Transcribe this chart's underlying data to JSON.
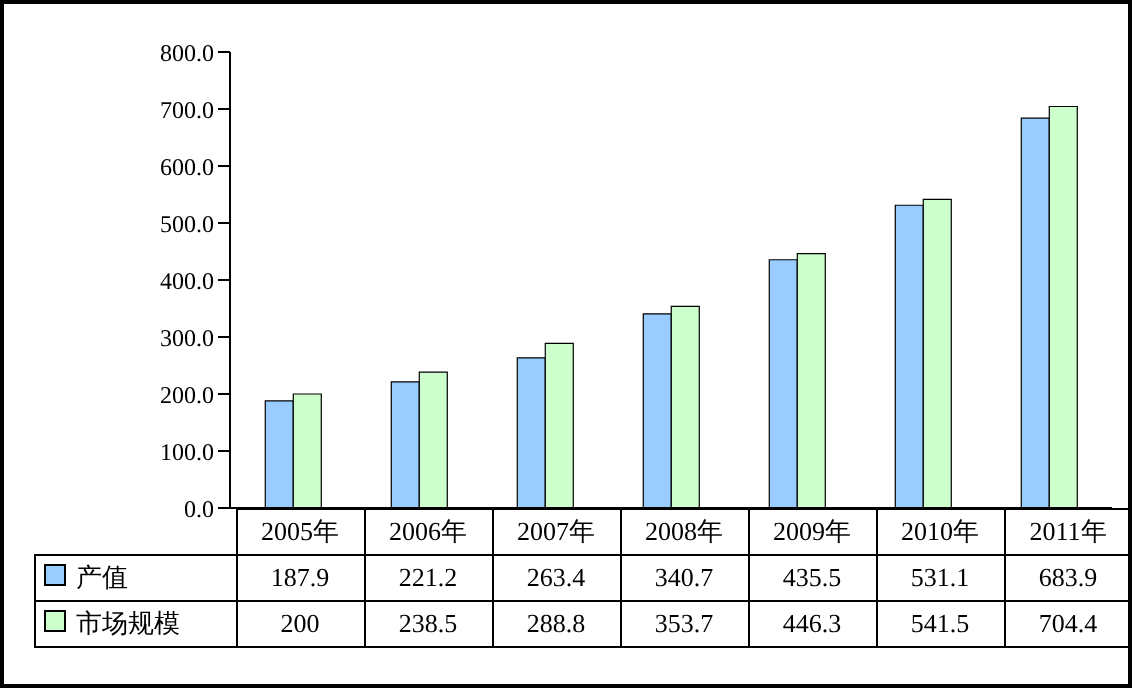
{
  "chart_data": {
    "type": "bar",
    "categories": [
      "2005年",
      "2006年",
      "2007年",
      "2008年",
      "2009年",
      "2010年",
      "2011年"
    ],
    "series": [
      {
        "name": "产值",
        "color": "#99ccff",
        "values": [
          187.9,
          221.2,
          263.4,
          340.7,
          435.5,
          531.1,
          683.9
        ]
      },
      {
        "name": "市场规模",
        "color": "#ccffcc",
        "values": [
          200,
          238.5,
          288.8,
          353.7,
          446.3,
          541.5,
          704.4
        ]
      }
    ],
    "ylim": [
      0,
      800
    ],
    "yticks": [
      {
        "value": 0,
        "label": "0.0"
      },
      {
        "value": 100,
        "label": "100.0"
      },
      {
        "value": 200,
        "label": "200.0"
      },
      {
        "value": 300,
        "label": "300.0"
      },
      {
        "value": 400,
        "label": "400.0"
      },
      {
        "value": 500,
        "label": "500.0"
      },
      {
        "value": 600,
        "label": "600.0"
      },
      {
        "value": 700,
        "label": "700.0"
      },
      {
        "value": 800,
        "label": "800.0"
      }
    ],
    "grid": false,
    "legend": "bottom",
    "data_labels": true
  }
}
